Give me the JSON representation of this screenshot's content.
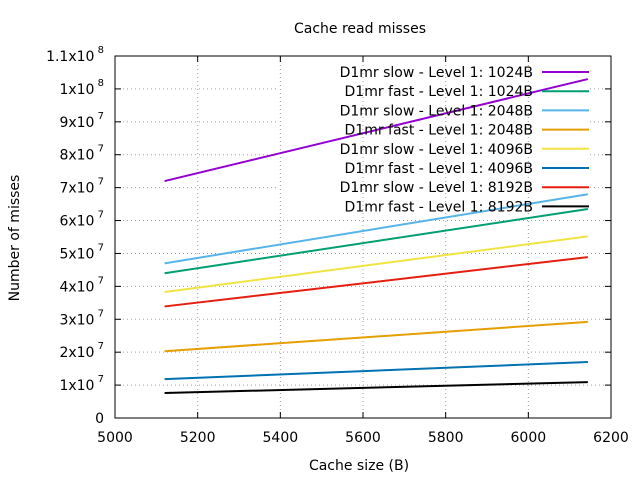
{
  "chart_data": {
    "type": "line",
    "title": "Cache read misses",
    "xlabel": "Cache size (B)",
    "ylabel": "Number of misses",
    "xlim": [
      5000,
      6200
    ],
    "ylim": [
      0,
      110000000
    ],
    "x_ticks": [
      5000,
      5200,
      5400,
      5600,
      5800,
      6000,
      6200
    ],
    "x_tick_labels": [
      "5000",
      "5200",
      "5400",
      "5600",
      "5800",
      "6000",
      "6200"
    ],
    "y_ticks": [
      {
        "value": 0,
        "label": "0",
        "exp": ""
      },
      {
        "value": 10000000,
        "label": "1x10",
        "exp": "7"
      },
      {
        "value": 20000000,
        "label": "2x10",
        "exp": "7"
      },
      {
        "value": 30000000,
        "label": "3x10",
        "exp": "7"
      },
      {
        "value": 40000000,
        "label": "4x10",
        "exp": "7"
      },
      {
        "value": 50000000,
        "label": "5x10",
        "exp": "7"
      },
      {
        "value": 60000000,
        "label": "6x10",
        "exp": "7"
      },
      {
        "value": 70000000,
        "label": "7x10",
        "exp": "7"
      },
      {
        "value": 80000000,
        "label": "8x10",
        "exp": "7"
      },
      {
        "value": 90000000,
        "label": "9x10",
        "exp": "7"
      },
      {
        "value": 100000000,
        "label": "1x10",
        "exp": "8"
      },
      {
        "value": 110000000,
        "label": "1.1x10",
        "exp": "8"
      }
    ],
    "grid": true,
    "legend_position": "top-right",
    "series": [
      {
        "name": "D1mr slow - Level 1: 1024B",
        "color": "#9400d3",
        "x": [
          5120,
          6144
        ],
        "y": [
          72000000,
          103000000
        ]
      },
      {
        "name": "D1mr fast - Level 1: 1024B",
        "color": "#009e73",
        "x": [
          5120,
          6144
        ],
        "y": [
          44000000,
          63500000
        ]
      },
      {
        "name": "D1mr slow - Level 1: 2048B",
        "color": "#56b4e9",
        "x": [
          5120,
          6144
        ],
        "y": [
          47000000,
          68000000
        ]
      },
      {
        "name": "D1mr fast - Level 1: 2048B",
        "color": "#e69f00",
        "x": [
          5120,
          6144
        ],
        "y": [
          20300000,
          29200000
        ]
      },
      {
        "name": "D1mr slow - Level 1: 4096B",
        "color": "#f0e442",
        "x": [
          5120,
          6144
        ],
        "y": [
          38300000,
          55200000
        ]
      },
      {
        "name": "D1mr fast - Level 1: 4096B",
        "color": "#0072b2",
        "x": [
          5120,
          6144
        ],
        "y": [
          11800000,
          17000000
        ]
      },
      {
        "name": "D1mr slow - Level 1: 8192B",
        "color": "#e51e10",
        "x": [
          5120,
          6144
        ],
        "y": [
          33900000,
          48900000
        ]
      },
      {
        "name": "D1mr fast - Level 1: 8192B",
        "color": "#000000",
        "x": [
          5120,
          6144
        ],
        "y": [
          7600000,
          10900000
        ]
      }
    ]
  }
}
